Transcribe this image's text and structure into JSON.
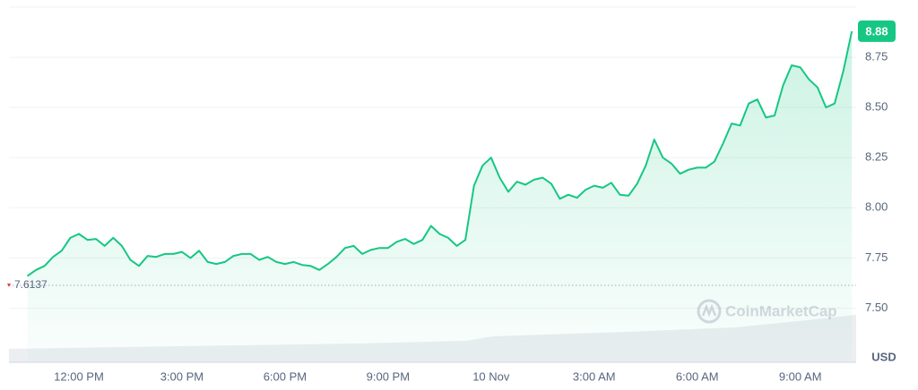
{
  "chart_data": {
    "type": "line",
    "unit": "USD",
    "watermark": "CoinMarketCap",
    "reference_value": 7.6137,
    "categories": [
      null,
      null,
      null,
      null,
      null,
      null,
      "12:00 PM",
      null,
      null,
      null,
      null,
      null,
      null,
      null,
      null,
      null,
      null,
      null,
      "3:00 PM",
      null,
      null,
      null,
      null,
      null,
      null,
      null,
      null,
      null,
      null,
      null,
      "6:00 PM",
      null,
      null,
      null,
      null,
      null,
      null,
      null,
      null,
      null,
      null,
      null,
      "9:00 PM",
      null,
      null,
      null,
      null,
      null,
      null,
      null,
      null,
      null,
      null,
      null,
      "10 Nov",
      null,
      null,
      null,
      null,
      null,
      null,
      null,
      null,
      null,
      null,
      null,
      "3:00 AM",
      null,
      null,
      null,
      null,
      null,
      null,
      null,
      null,
      null,
      null,
      null,
      "6:00 AM",
      null,
      null,
      null,
      null,
      null,
      null,
      null,
      null,
      null,
      null,
      null,
      "9:00 AM",
      null,
      null,
      null,
      null,
      null,
      null
    ],
    "series": [
      {
        "color": "#16c784",
        "values": [
          7.66,
          7.69,
          7.71,
          7.755,
          7.786,
          7.85,
          7.87,
          7.84,
          7.845,
          7.81,
          7.85,
          7.81,
          7.74,
          7.71,
          7.76,
          7.755,
          7.77,
          7.77,
          7.78,
          7.75,
          7.786,
          7.73,
          7.72,
          7.73,
          7.76,
          7.77,
          7.77,
          7.74,
          7.755,
          7.73,
          7.72,
          7.73,
          7.715,
          7.71,
          7.69,
          7.72,
          7.755,
          7.8,
          7.81,
          7.77,
          7.79,
          7.8,
          7.8,
          7.83,
          7.845,
          7.82,
          7.84,
          7.91,
          7.87,
          7.85,
          7.81,
          7.84,
          8.11,
          8.21,
          8.25,
          8.15,
          8.08,
          8.13,
          8.115,
          8.14,
          8.15,
          8.12,
          8.045,
          8.065,
          8.05,
          8.09,
          8.11,
          8.1,
          8.125,
          8.065,
          8.06,
          8.12,
          8.21,
          8.34,
          8.25,
          8.22,
          8.17,
          8.19,
          8.2,
          8.2,
          8.23,
          8.32,
          8.42,
          8.41,
          8.52,
          8.54,
          8.45,
          8.46,
          8.61,
          8.71,
          8.7,
          8.64,
          8.6,
          8.5,
          8.52,
          8.68,
          8.88
        ]
      }
    ],
    "ylim": [
      7.23,
      9.0
    ],
    "yticks": [
      {
        "value": 7.5,
        "label": "7.50"
      },
      {
        "value": 7.75,
        "label": "7.75"
      },
      {
        "value": 8.0,
        "label": "8.00"
      },
      {
        "value": 8.25,
        "label": "8.25"
      },
      {
        "value": 8.5,
        "label": "8.50"
      },
      {
        "value": 8.75,
        "label": "8.75"
      }
    ],
    "grid": true
  }
}
